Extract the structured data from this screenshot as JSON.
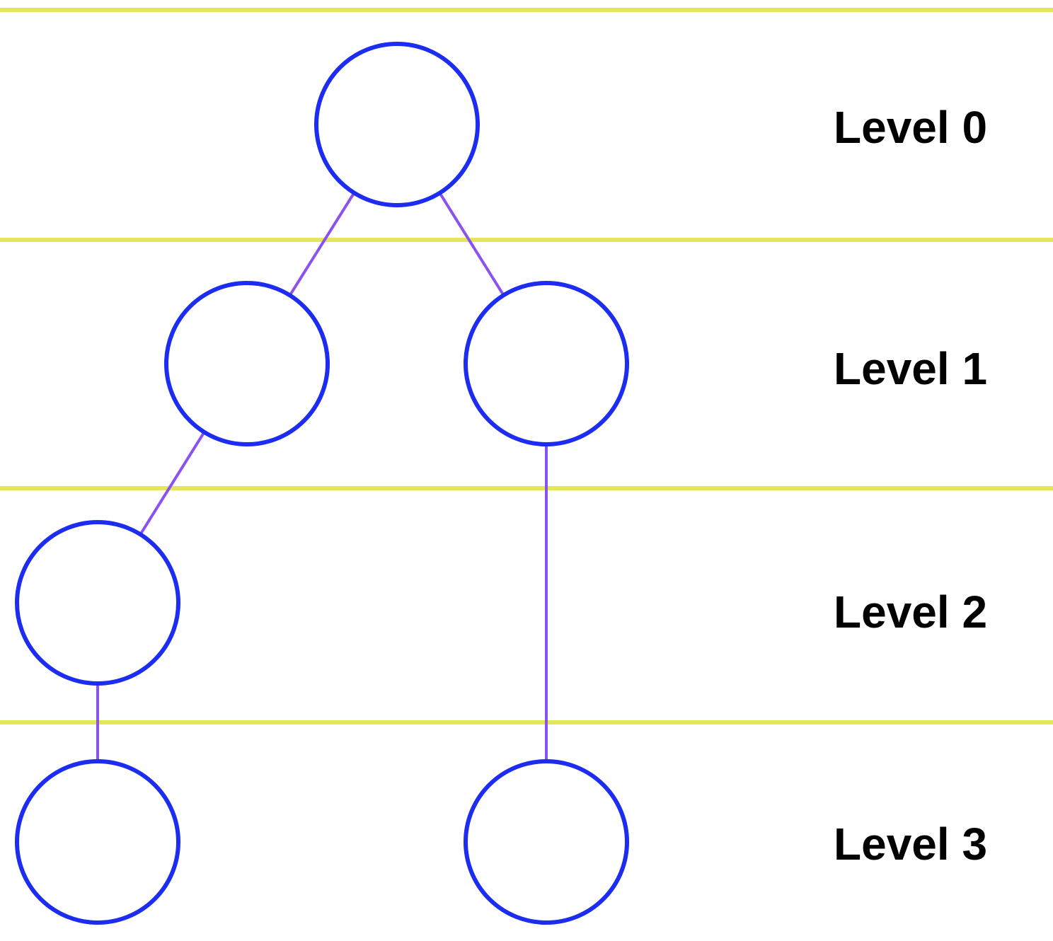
{
  "colors": {
    "separator": "#e4e65a",
    "edge": "#8a52ee",
    "node_stroke": "#1c2cf0",
    "label": "#000000",
    "background": "#ffffff"
  },
  "levels": [
    {
      "label": "Level 0"
    },
    {
      "label": "Level 1"
    },
    {
      "label": "Level 2"
    },
    {
      "label": "Level 3"
    }
  ],
  "nodes": [
    {
      "id": "n0",
      "level": 0
    },
    {
      "id": "n1a",
      "level": 1
    },
    {
      "id": "n1b",
      "level": 1
    },
    {
      "id": "n2a",
      "level": 2
    },
    {
      "id": "n3a",
      "level": 3
    },
    {
      "id": "n3b",
      "level": 3
    }
  ],
  "edges": [
    {
      "from": "n0",
      "to": "n1a"
    },
    {
      "from": "n0",
      "to": "n1b"
    },
    {
      "from": "n1a",
      "to": "n2a"
    },
    {
      "from": "n1b",
      "to": "n3b"
    },
    {
      "from": "n2a",
      "to": "n3a"
    }
  ]
}
